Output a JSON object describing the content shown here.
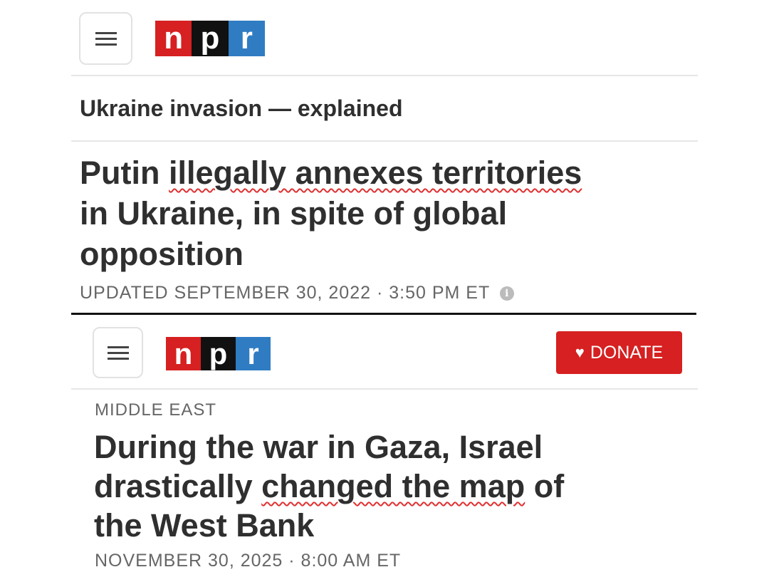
{
  "colors": {
    "npr_red": "#d62021",
    "npr_black": "#111111",
    "npr_blue": "#2f7cc3",
    "donate_bg": "#d62021",
    "underline": "#e03030"
  },
  "top": {
    "logo": [
      "n",
      "p",
      "r"
    ],
    "kicker": "Ukraine invasion — explained",
    "headline": {
      "pre": "Putin ",
      "underlined": "illegally annexes territories",
      "line2": "in Ukraine, in spite of global",
      "line3": "opposition"
    },
    "updated": "UPDATED SEPTEMBER 30, 2022 · 3:50 PM ET",
    "info_icon": "info-icon"
  },
  "bottom": {
    "logo": [
      "n",
      "p",
      "r"
    ],
    "donate_label": "DONATE",
    "section": "MIDDLE EAST",
    "headline": {
      "line1": "During the war in Gaza, Israel",
      "pre2": "drastically ",
      "underlined": "changed the map",
      "post2": " of",
      "line3": "the West Bank"
    },
    "date": "NOVEMBER 30, 2025 · 8:00 AM ET"
  }
}
